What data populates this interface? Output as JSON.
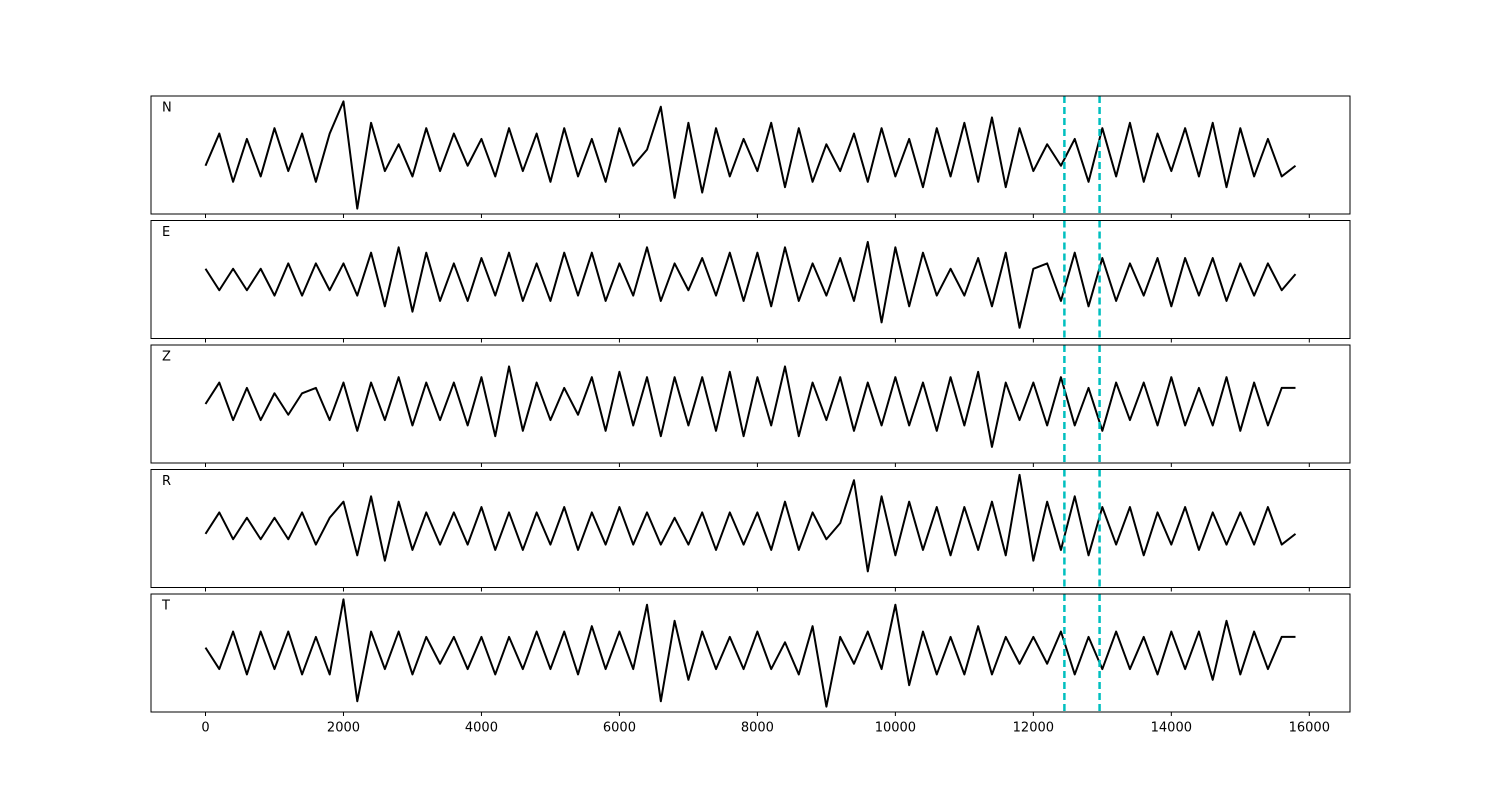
{
  "chart_data": {
    "type": "line",
    "layout": "stacked",
    "line_color": "#000000",
    "x": [
      0,
      200,
      400,
      600,
      800,
      1000,
      1200,
      1400,
      1600,
      1800,
      2000,
      2200,
      2400,
      2600,
      2800,
      3000,
      3200,
      3400,
      3600,
      3800,
      4000,
      4200,
      4400,
      4600,
      4800,
      5000,
      5200,
      5400,
      5600,
      5800,
      6000,
      6200,
      6400,
      6600,
      6800,
      7000,
      7200,
      7400,
      7600,
      7800,
      8000,
      8200,
      8400,
      8600,
      8800,
      9000,
      9200,
      9400,
      9600,
      9800,
      10000,
      10200,
      10400,
      10600,
      10800,
      11000,
      11200,
      11400,
      11600,
      11800,
      12000,
      12200,
      12400,
      12600,
      12800,
      13000,
      13200,
      13400,
      13600,
      13800,
      14000,
      14200,
      14400,
      14600,
      14800,
      15000,
      15200,
      15400,
      15600,
      15800
    ],
    "series": [
      {
        "name": "N",
        "values": [
          -0.2,
          0.4,
          -0.5,
          0.3,
          -0.4,
          0.5,
          -0.3,
          0.4,
          -0.5,
          0.4,
          1.0,
          -1.0,
          0.6,
          -0.3,
          0.2,
          -0.4,
          0.5,
          -0.3,
          0.4,
          -0.2,
          0.3,
          -0.4,
          0.5,
          -0.3,
          0.4,
          -0.5,
          0.5,
          -0.4,
          0.3,
          -0.5,
          0.5,
          -0.2,
          0.1,
          0.9,
          -0.8,
          0.6,
          -0.7,
          0.5,
          -0.4,
          0.3,
          -0.3,
          0.6,
          -0.6,
          0.5,
          -0.5,
          0.2,
          -0.3,
          0.4,
          -0.5,
          0.5,
          -0.4,
          0.3,
          -0.6,
          0.5,
          -0.4,
          0.6,
          -0.5,
          0.7,
          -0.6,
          0.5,
          -0.3,
          0.2,
          -0.2,
          0.3,
          -0.5,
          0.5,
          -0.4,
          0.6,
          -0.5,
          0.4,
          -0.3,
          0.5,
          -0.4,
          0.6,
          -0.6,
          0.5,
          -0.4,
          0.3,
          -0.4,
          -0.2
        ]
      },
      {
        "name": "E",
        "values": [
          0.2,
          -0.2,
          0.2,
          -0.2,
          0.2,
          -0.3,
          0.3,
          -0.3,
          0.3,
          -0.2,
          0.3,
          -0.3,
          0.5,
          -0.5,
          0.6,
          -0.6,
          0.5,
          -0.4,
          0.3,
          -0.4,
          0.4,
          -0.3,
          0.5,
          -0.4,
          0.3,
          -0.4,
          0.5,
          -0.3,
          0.5,
          -0.4,
          0.3,
          -0.3,
          0.6,
          -0.4,
          0.3,
          -0.2,
          0.4,
          -0.3,
          0.5,
          -0.4,
          0.5,
          -0.5,
          0.6,
          -0.4,
          0.3,
          -0.3,
          0.4,
          -0.4,
          0.7,
          -0.8,
          0.6,
          -0.5,
          0.5,
          -0.3,
          0.2,
          -0.3,
          0.4,
          -0.5,
          0.5,
          -0.9,
          0.2,
          0.3,
          -0.4,
          0.5,
          -0.5,
          0.4,
          -0.4,
          0.3,
          -0.3,
          0.4,
          -0.5,
          0.4,
          -0.3,
          0.4,
          -0.4,
          0.3,
          -0.3,
          0.3,
          -0.2,
          0.1
        ]
      },
      {
        "name": "Z",
        "values": [
          0.0,
          0.4,
          -0.3,
          0.3,
          -0.3,
          0.2,
          -0.2,
          0.2,
          0.3,
          -0.3,
          0.4,
          -0.5,
          0.4,
          -0.3,
          0.5,
          -0.4,
          0.4,
          -0.3,
          0.4,
          -0.4,
          0.5,
          -0.6,
          0.7,
          -0.5,
          0.4,
          -0.3,
          0.3,
          -0.2,
          0.5,
          -0.5,
          0.6,
          -0.4,
          0.5,
          -0.6,
          0.5,
          -0.4,
          0.5,
          -0.5,
          0.6,
          -0.6,
          0.5,
          -0.4,
          0.7,
          -0.6,
          0.4,
          -0.3,
          0.5,
          -0.5,
          0.4,
          -0.4,
          0.5,
          -0.4,
          0.4,
          -0.5,
          0.5,
          -0.4,
          0.6,
          -0.8,
          0.4,
          -0.3,
          0.4,
          -0.4,
          0.5,
          -0.4,
          0.3,
          -0.5,
          0.4,
          -0.3,
          0.4,
          -0.4,
          0.5,
          -0.4,
          0.3,
          -0.4,
          0.5,
          -0.5,
          0.4,
          -0.4,
          0.3,
          0.3
        ]
      },
      {
        "name": "R",
        "values": [
          -0.1,
          0.3,
          -0.2,
          0.2,
          -0.2,
          0.2,
          -0.2,
          0.3,
          -0.3,
          0.2,
          0.5,
          -0.5,
          0.6,
          -0.6,
          0.5,
          -0.4,
          0.3,
          -0.3,
          0.3,
          -0.3,
          0.4,
          -0.4,
          0.3,
          -0.4,
          0.3,
          -0.3,
          0.4,
          -0.4,
          0.3,
          -0.3,
          0.4,
          -0.3,
          0.3,
          -0.3,
          0.2,
          -0.3,
          0.3,
          -0.4,
          0.3,
          -0.3,
          0.3,
          -0.4,
          0.5,
          -0.4,
          0.3,
          -0.2,
          0.1,
          0.9,
          -0.8,
          0.6,
          -0.5,
          0.5,
          -0.4,
          0.4,
          -0.5,
          0.4,
          -0.4,
          0.5,
          -0.5,
          1.0,
          -0.6,
          0.5,
          -0.4,
          0.6,
          -0.5,
          0.4,
          -0.3,
          0.4,
          -0.5,
          0.3,
          -0.3,
          0.4,
          -0.4,
          0.3,
          -0.3,
          0.3,
          -0.3,
          0.4,
          -0.3,
          -0.1
        ]
      },
      {
        "name": "T",
        "values": [
          0.1,
          -0.3,
          0.4,
          -0.4,
          0.4,
          -0.3,
          0.4,
          -0.4,
          0.3,
          -0.4,
          1.0,
          -0.9,
          0.4,
          -0.3,
          0.4,
          -0.4,
          0.3,
          -0.2,
          0.3,
          -0.3,
          0.3,
          -0.4,
          0.3,
          -0.3,
          0.4,
          -0.3,
          0.4,
          -0.4,
          0.5,
          -0.3,
          0.4,
          -0.3,
          0.9,
          -0.9,
          0.6,
          -0.5,
          0.4,
          -0.3,
          0.3,
          -0.3,
          0.4,
          -0.3,
          0.2,
          -0.4,
          0.5,
          -1.0,
          0.3,
          -0.2,
          0.4,
          -0.3,
          0.9,
          -0.6,
          0.4,
          -0.4,
          0.3,
          -0.4,
          0.5,
          -0.4,
          0.3,
          -0.2,
          0.3,
          -0.2,
          0.4,
          -0.4,
          0.3,
          -0.3,
          0.4,
          -0.3,
          0.3,
          -0.4,
          0.4,
          -0.3,
          0.4,
          -0.5,
          0.6,
          -0.4,
          0.4,
          -0.3,
          0.3,
          0.3
        ]
      }
    ],
    "xlim": [
      -790,
      16590
    ],
    "xticks": [
      0,
      2000,
      4000,
      6000,
      8000,
      10000,
      12000,
      14000,
      16000
    ],
    "ylim": [
      -1.1,
      1.1
    ],
    "vlines": [
      12450,
      12960
    ],
    "vline_color": "#00bfbf"
  }
}
